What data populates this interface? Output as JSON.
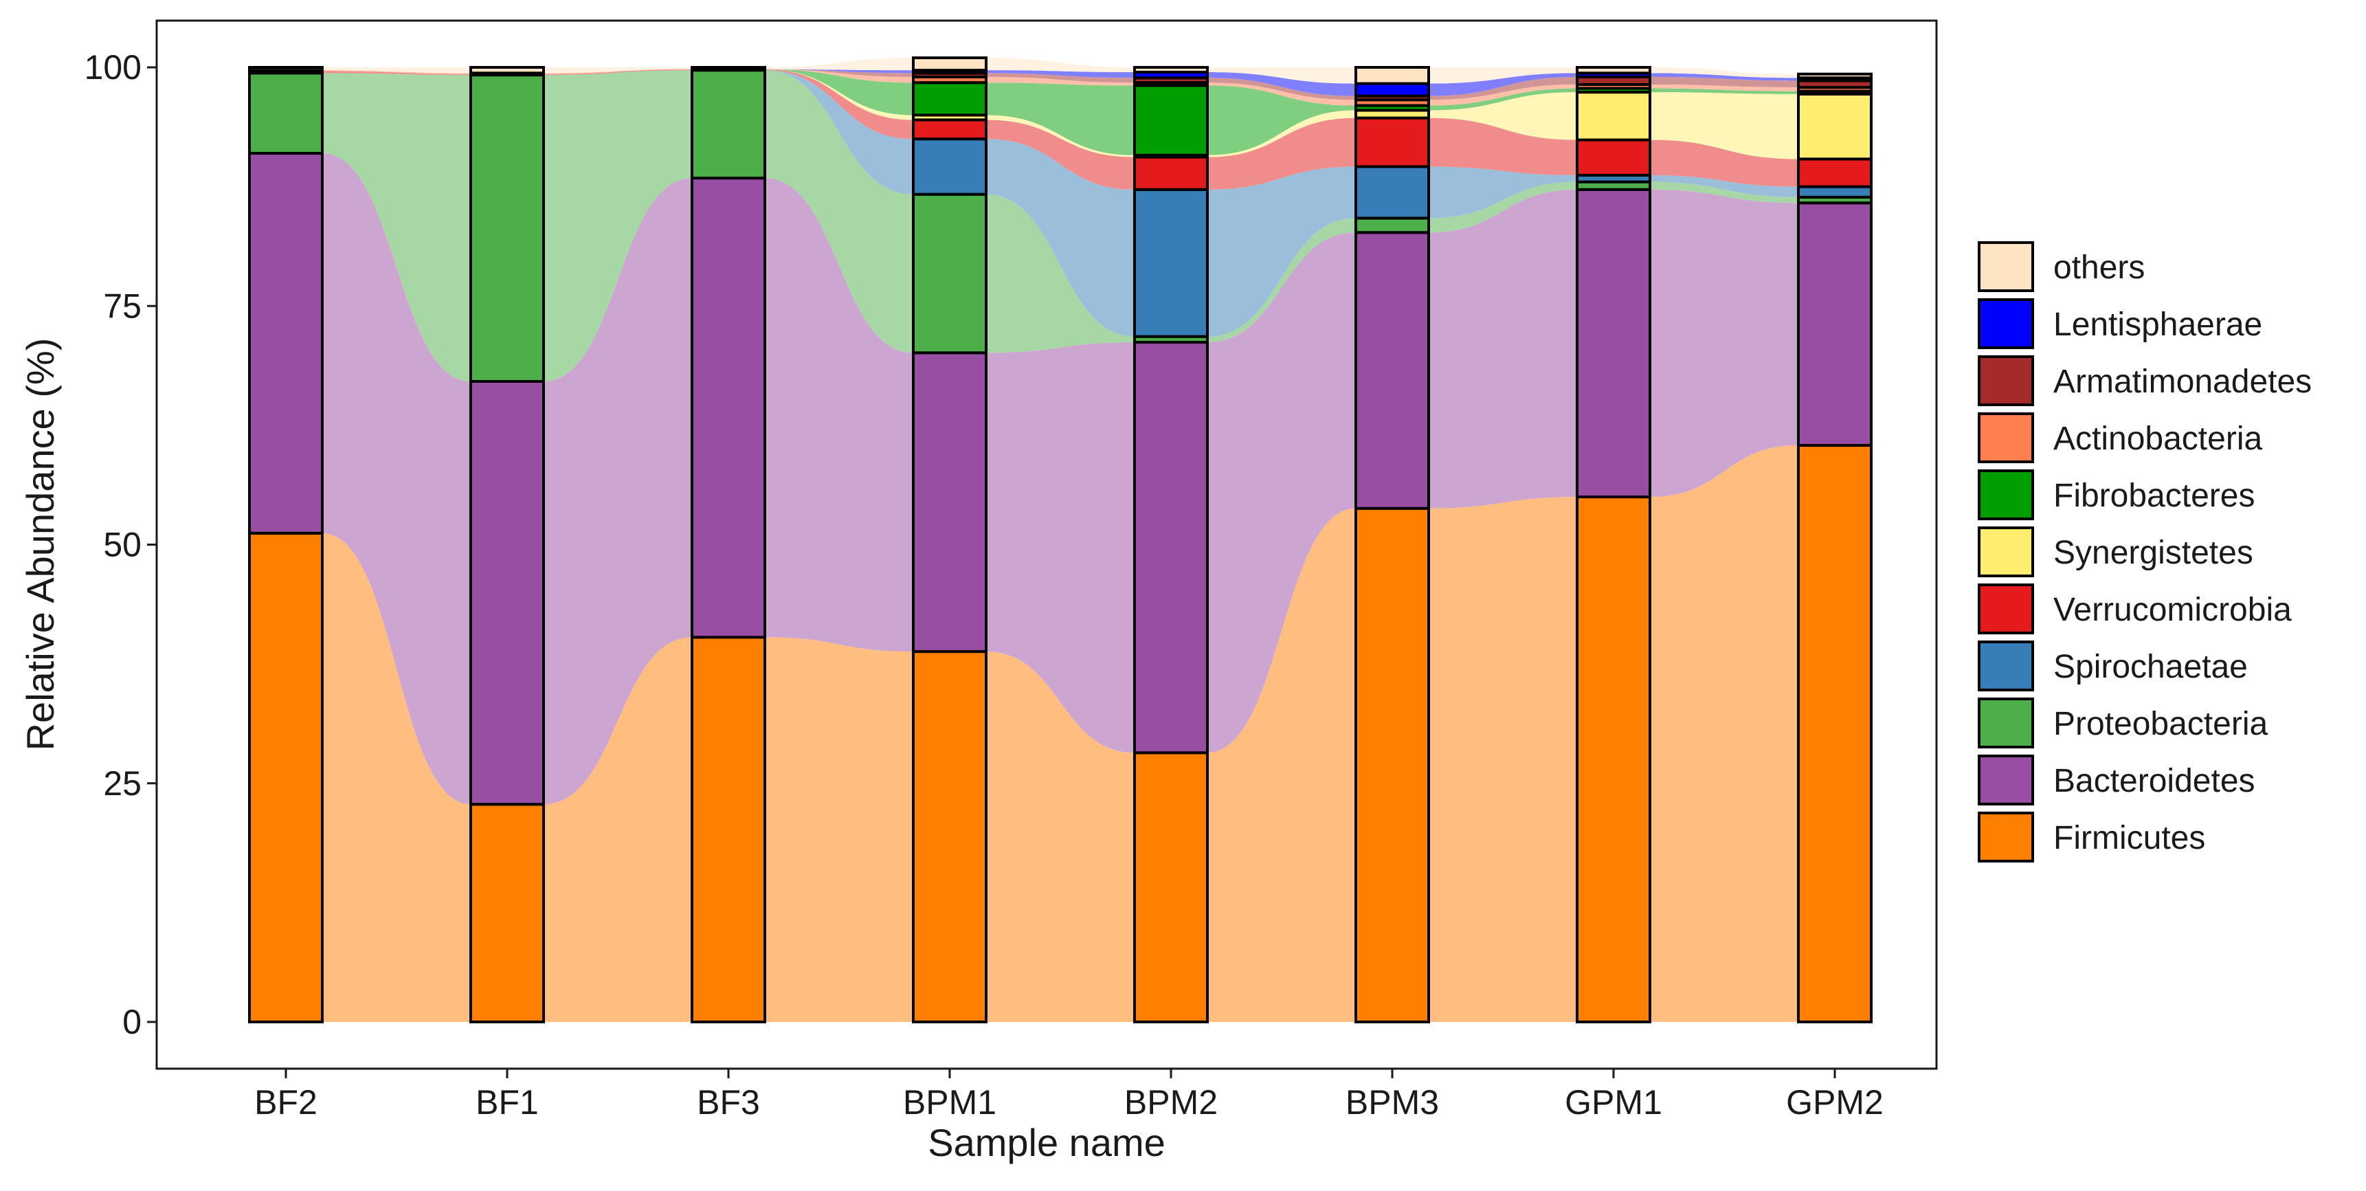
{
  "chart_data": {
    "type": "bar",
    "subtype": "stacked-percent-with-alluvial-flow",
    "title": "",
    "xlabel": "Sample name",
    "ylabel": "Relative Abundance (%)",
    "ylim": [
      0,
      100
    ],
    "yticks": [
      0,
      25,
      50,
      75,
      100
    ],
    "categories": [
      "BF2",
      "BF1",
      "BF3",
      "BPM1",
      "BPM2",
      "BPM3",
      "GPM1",
      "GPM2"
    ],
    "series": [
      {
        "name": "Firmicutes",
        "color": "#FF7F00",
        "flow_color": "#FFBE80",
        "values": [
          51.2,
          22.8,
          40.3,
          38.8,
          28.2,
          53.8,
          55.0,
          60.4
        ]
      },
      {
        "name": "Bacteroidetes",
        "color": "#984EA3",
        "flow_color": "#CCA6D1",
        "values": [
          39.8,
          44.3,
          48.1,
          31.3,
          43.0,
          28.9,
          32.2,
          25.4
        ]
      },
      {
        "name": "Proteobacteria",
        "color": "#4DAF4A",
        "flow_color": "#A6D7A4",
        "values": [
          8.4,
          32.1,
          11.3,
          16.6,
          0.6,
          1.5,
          0.8,
          0.6
        ]
      },
      {
        "name": "Spirochaetae",
        "color": "#377EB8",
        "flow_color": "#9BBEDB",
        "values": [
          0.0,
          0.0,
          0.0,
          5.8,
          15.4,
          5.4,
          0.7,
          1.1
        ]
      },
      {
        "name": "Verrucomicrobia",
        "color": "#E41A1C",
        "flow_color": "#F18C8D",
        "values": [
          0.2,
          0.1,
          0.1,
          2.0,
          3.4,
          5.1,
          3.7,
          2.9
        ]
      },
      {
        "name": "Synergistetes",
        "color": "#FFED6F",
        "flow_color": "#FFF6B7",
        "values": [
          0.0,
          0.0,
          0.0,
          0.5,
          0.2,
          0.8,
          5.0,
          6.8
        ]
      },
      {
        "name": "Fibrobacteres",
        "color": "#009E00",
        "flow_color": "#80CE80",
        "values": [
          0.0,
          0.0,
          0.0,
          3.4,
          7.3,
          0.5,
          0.4,
          0.3
        ]
      },
      {
        "name": "Actinobacteria",
        "color": "#FF7F50",
        "flow_color": "#FFBFA8",
        "values": [
          0.1,
          0.1,
          0.0,
          0.6,
          0.3,
          0.6,
          0.4,
          0.4
        ]
      },
      {
        "name": "Armatimonadetes",
        "color": "#A52A2A",
        "flow_color": "#D29595",
        "values": [
          0.0,
          0.0,
          0.0,
          0.4,
          0.5,
          0.4,
          0.8,
          0.7
        ]
      },
      {
        "name": "Lentisphaerae",
        "color": "#0000FF",
        "flow_color": "#8080FF",
        "values": [
          0.0,
          0.0,
          0.0,
          0.3,
          0.6,
          1.3,
          0.4,
          0.3
        ]
      },
      {
        "name": "others",
        "color": "#FFE4C4",
        "flow_color": "#FFF2E2",
        "values": [
          0.3,
          0.6,
          0.2,
          1.3,
          0.5,
          1.7,
          0.6,
          0.4
        ]
      }
    ],
    "legend": {
      "placement": "right",
      "order": [
        "others",
        "Lentisphaerae",
        "Armatimonadetes",
        "Actinobacteria",
        "Fibrobacteres",
        "Synergistetes",
        "Verrucomicrobia",
        "Spirochaetae",
        "Proteobacteria",
        "Bacteroidetes",
        "Firmicutes"
      ]
    },
    "grid": false
  }
}
